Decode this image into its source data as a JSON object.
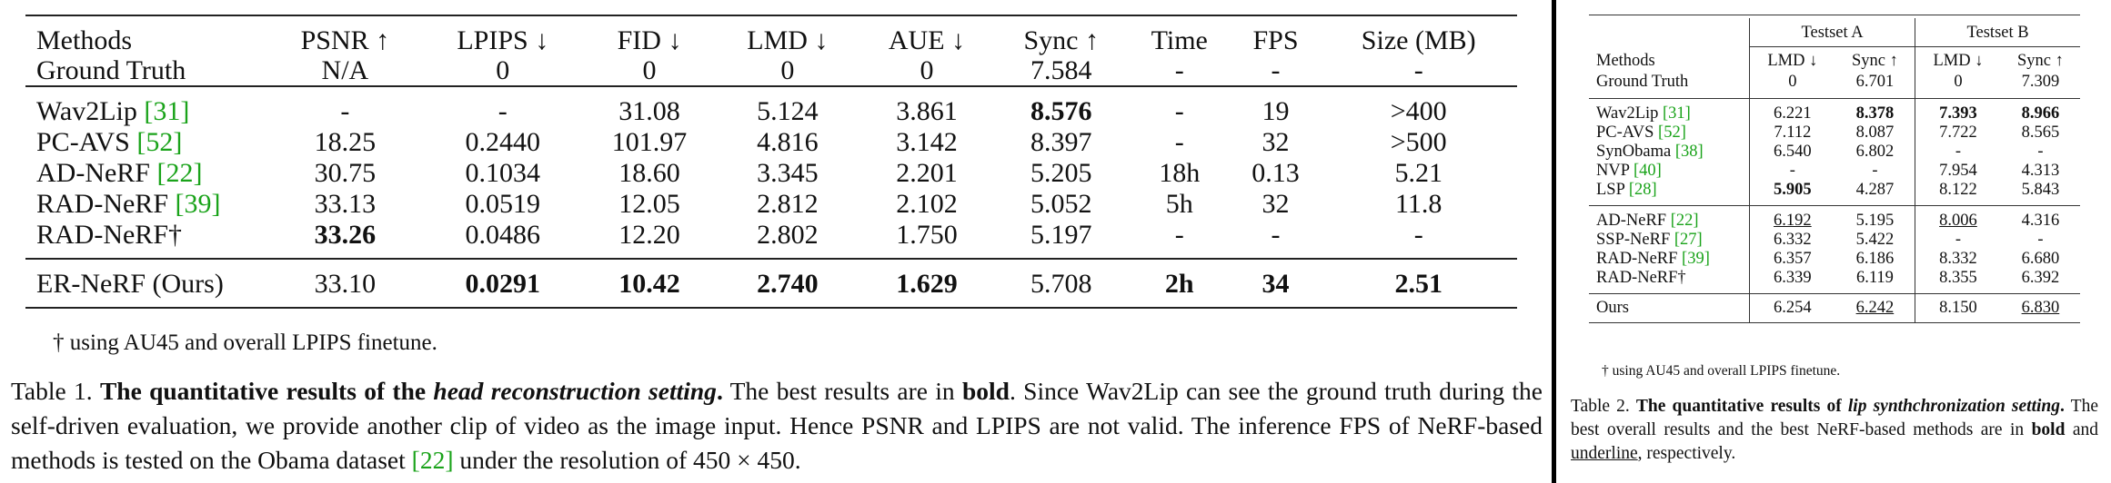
{
  "table1": {
    "columns": [
      "Methods",
      "PSNR ↑",
      "LPIPS ↓",
      "FID ↓",
      "LMD ↓",
      "AUE ↓",
      "Sync ↑",
      "Time",
      "FPS",
      "Size (MB)"
    ],
    "ground_truth": [
      "Ground Truth",
      "N/A",
      "0",
      "0",
      "0",
      "0",
      "7.584",
      "-",
      "-",
      "-"
    ],
    "rows": [
      {
        "method": "Wav2Lip ",
        "ref": "[31]",
        "cells": [
          "-",
          "-",
          "31.08",
          "5.124",
          "3.861",
          "8.576",
          "-",
          "19",
          ">400"
        ]
      },
      {
        "method": "PC-AVS ",
        "ref": "[52]",
        "cells": [
          "18.25",
          "0.2440",
          "101.97",
          "4.816",
          "3.142",
          "8.397",
          "-",
          "32",
          ">500"
        ]
      },
      {
        "method": "AD-NeRF ",
        "ref": "[22]",
        "cells": [
          "30.75",
          "0.1034",
          "18.60",
          "3.345",
          "2.201",
          "5.205",
          "18h",
          "0.13",
          "5.21"
        ]
      },
      {
        "method": "RAD-NeRF ",
        "ref": "[39]",
        "cells": [
          "33.13",
          "0.0519",
          "12.05",
          "2.812",
          "2.102",
          "5.052",
          "5h",
          "32",
          "11.8"
        ]
      },
      {
        "method": "RAD-NeRF†",
        "ref": "",
        "cells": [
          "33.26",
          "0.0486",
          "12.20",
          "2.802",
          "1.750",
          "5.197",
          "-",
          "-",
          "-"
        ]
      }
    ],
    "ours": {
      "method": "ER-NeRF (Ours)",
      "cells": [
        "33.10",
        "0.0291",
        "10.42",
        "2.740",
        "1.629",
        "5.708",
        "2h",
        "34",
        "2.51"
      ]
    },
    "note": "† using AU45 and overall LPIPS finetune.",
    "caption": {
      "label": "Table 1. ",
      "bold1": "The quantitative results of the ",
      "italic": "head reconstruction setting",
      "bold2": ".",
      "t1": " The best results are in ",
      "bold_word": "bold",
      "t2": ". Since Wav2Lip can see the ground truth during the self-driven evaluation, we provide another clip of video as the image input. Hence PSNR and LPIPS are not valid. The inference FPS of NeRF-based methods is tested on the Obama dataset ",
      "ref": "[22]",
      "t3": " under the resolution of 450 × 450."
    }
  },
  "table2": {
    "group_a": "Testset A",
    "group_b": "Testset B",
    "header": [
      "Methods",
      "LMD ↓",
      "Sync ↑",
      "LMD ↓",
      "Sync ↑"
    ],
    "ground_truth": [
      "Ground Truth",
      "0",
      "6.701",
      "0",
      "7.309"
    ],
    "section1": [
      {
        "method": "Wav2Lip ",
        "ref": "[31]",
        "cells": [
          "6.221",
          "8.378",
          "7.393",
          "8.966"
        ]
      },
      {
        "method": "PC-AVS ",
        "ref": "[52]",
        "cells": [
          "7.112",
          "8.087",
          "7.722",
          "8.565"
        ]
      },
      {
        "method": "SynObama ",
        "ref": "[38]",
        "cells": [
          "6.540",
          "6.802",
          "-",
          "-"
        ]
      },
      {
        "method": "NVP ",
        "ref": "[40]",
        "cells": [
          "-",
          "-",
          "7.954",
          "4.313"
        ]
      },
      {
        "method": "LSP ",
        "ref": "[28]",
        "cells": [
          "5.905",
          "4.287",
          "8.122",
          "5.843"
        ]
      }
    ],
    "section2": [
      {
        "method": "AD-NeRF ",
        "ref": "[22]",
        "cells": [
          "6.192",
          "5.195",
          "8.006",
          "4.316"
        ]
      },
      {
        "method": "SSP-NeRF ",
        "ref": "[27]",
        "cells": [
          "6.332",
          "5.422",
          "-",
          "-"
        ]
      },
      {
        "method": "RAD-NeRF ",
        "ref": "[39]",
        "cells": [
          "6.357",
          "6.186",
          "8.332",
          "6.680"
        ]
      },
      {
        "method": "RAD-NeRF†",
        "ref": "",
        "cells": [
          "6.339",
          "6.119",
          "8.355",
          "6.392"
        ]
      }
    ],
    "ours": {
      "method": "Ours",
      "cells": [
        "6.254",
        "6.242",
        "8.150",
        "6.830"
      ]
    },
    "note": "† using AU45 and overall LPIPS finetune.",
    "caption": {
      "label": "Table 2. ",
      "bold1": "The quantitative results of ",
      "italic": "lip synthchronization setting",
      "bold2": ".",
      "t1": " The best overall results and the best NeRF-based methods are in ",
      "bold_word": "bold",
      "t2": " and ",
      "underline_word": "underline",
      "t3": ", respectively."
    }
  }
}
